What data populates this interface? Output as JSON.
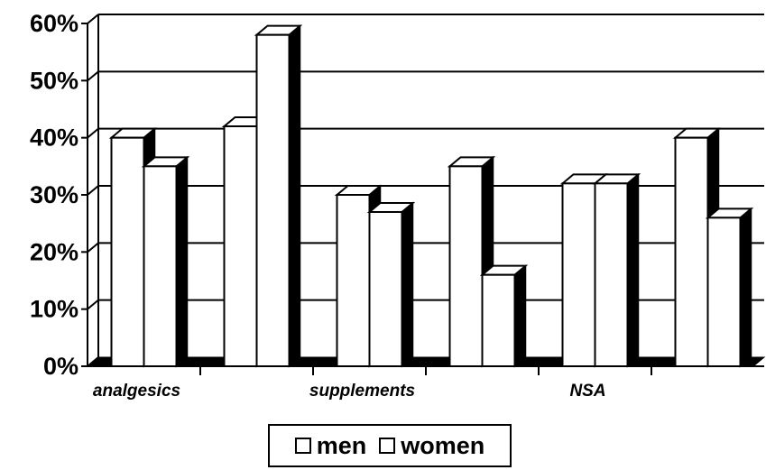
{
  "chart_data": {
    "type": "bar",
    "categories": [
      "analgesics",
      "",
      "supplements",
      "",
      "NSA",
      ""
    ],
    "series": [
      {
        "name": "men",
        "values": [
          40,
          42,
          30,
          35,
          32,
          40
        ]
      },
      {
        "name": "women",
        "values": [
          35,
          58,
          27,
          16,
          32,
          26
        ]
      }
    ],
    "y_tick_labels": [
      "0%",
      "10%",
      "20%",
      "30%",
      "40%",
      "50%",
      "60%"
    ],
    "ylim": [
      0,
      60
    ],
    "grid": true,
    "legend_position": "bottom",
    "colors": {
      "bar_face": "#ffffff",
      "bar_side": "#000000",
      "outline": "#000000"
    }
  },
  "legend": {
    "men": "men",
    "women": "women"
  }
}
